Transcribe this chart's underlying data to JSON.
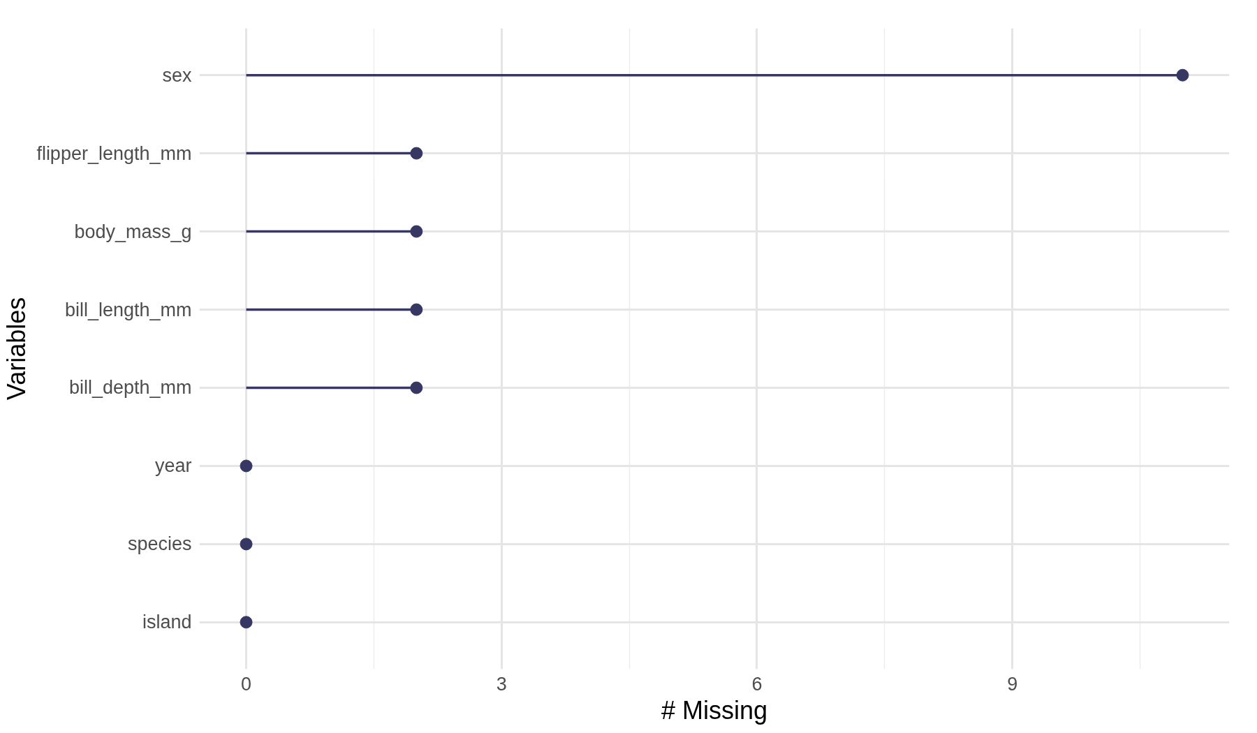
{
  "chart_data": {
    "type": "lollipop",
    "orientation": "horizontal",
    "xlabel": "# Missing",
    "ylabel": "Variables",
    "categories": [
      "sex",
      "flipper_length_mm",
      "body_mass_g",
      "bill_length_mm",
      "bill_depth_mm",
      "year",
      "species",
      "island"
    ],
    "values": [
      11,
      2,
      2,
      2,
      2,
      0,
      0,
      0
    ],
    "color": "#363863",
    "xlim": [
      -0.55,
      11.55
    ],
    "xticks": [
      0,
      {
        "value": 1.5,
        "label": null
      },
      3,
      {
        "value": 4.5,
        "label": null
      },
      6,
      {
        "value": 7.5,
        "label": null
      },
      9,
      {
        "value": 10.5,
        "label": null
      }
    ],
    "grid": true,
    "marker": "circle"
  }
}
